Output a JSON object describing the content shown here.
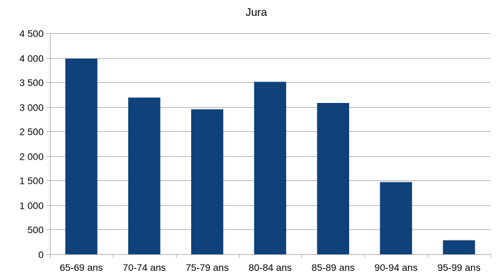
{
  "chart_data": {
    "type": "bar",
    "title": "Jura",
    "categories": [
      "65-69 ans",
      "70-74 ans",
      "75-79 ans",
      "80-84 ans",
      "85-89 ans",
      "90-94 ans",
      "95-99 ans"
    ],
    "values": [
      3980,
      3190,
      2950,
      3510,
      3080,
      1470,
      285
    ],
    "ylim": [
      0,
      4500
    ],
    "yticks": [
      0,
      500,
      1000,
      1500,
      2000,
      2500,
      3000,
      3500,
      4000,
      4500
    ],
    "ytick_labels": [
      "0",
      "500",
      "1 000",
      "1 500",
      "2 000",
      "2 500",
      "3 000",
      "3 500",
      "4 000",
      "4 500"
    ],
    "grid": true,
    "legend": "none",
    "bar_color": "#0f417a"
  }
}
